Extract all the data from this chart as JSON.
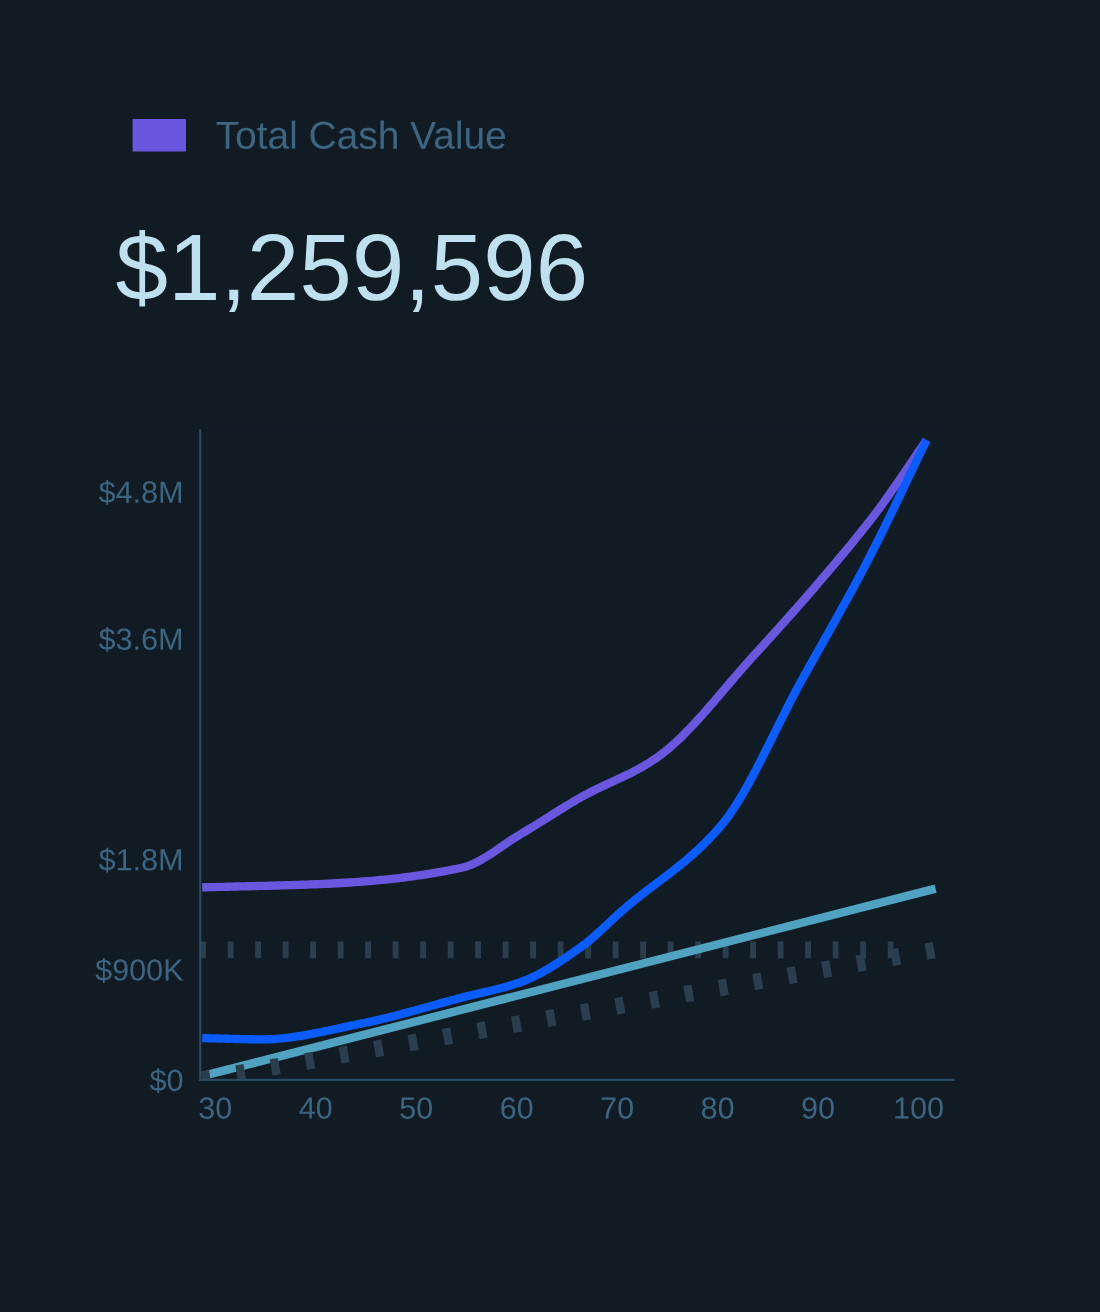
{
  "chart_data": {
    "type": "line",
    "title": "$1,259,596",
    "legend": "top left",
    "xlim": [
      28.5,
      103.5
    ],
    "xticks": [
      30,
      40,
      50,
      60,
      70,
      80,
      90,
      100
    ],
    "ylim": [
      0,
      5300000
    ],
    "yticks": [
      {
        "value": 0,
        "label": "$0"
      },
      {
        "value": 900000,
        "label": "$900K"
      },
      {
        "value": 1800000,
        "label": "$1.8M"
      },
      {
        "value": 3600000,
        "label": "$3.6M"
      },
      {
        "value": 4800000,
        "label": "$4.8M"
      }
    ],
    "grid": false,
    "marker": "none",
    "ref_lines": [
      {
        "axis": "y",
        "value": 1060000,
        "color": "#2b3e4e",
        "line_style": "dotted"
      }
    ],
    "series": [
      {
        "name": "Total Cash Value",
        "color": "#6a57e0",
        "line_style": "solid",
        "x": [
          28.7,
          41.2,
          54.5,
          60.5,
          66.5,
          73.8,
          83.8,
          90.3,
          95.7,
          100.8
        ],
        "values": [
          1570000,
          1600000,
          1730000,
          2010000,
          2310000,
          2620000,
          3480000,
          4080000,
          4620000,
          5220000
        ]
      },
      {
        "color": "#0a5cff",
        "line_style": "solid",
        "x": [
          28.7,
          34.7,
          44.6,
          54.5,
          60.5,
          66.5,
          70.5,
          80.4,
          88.3,
          94.9,
          100.8
        ],
        "values": [
          340000,
          330000,
          460000,
          670000,
          800000,
          1090000,
          1380000,
          2080000,
          3250000,
          4230000,
          5220000
        ]
      },
      {
        "color": "#4fa3c0",
        "line_style": "solid",
        "x": [
          28.7,
          101.7
        ],
        "values": [
          30000,
          1560000
        ]
      },
      {
        "color": "#2b3e4e",
        "line_style": "dashed",
        "x": [
          28.7,
          101.7
        ],
        "values": [
          0,
          1060000
        ]
      }
    ]
  }
}
